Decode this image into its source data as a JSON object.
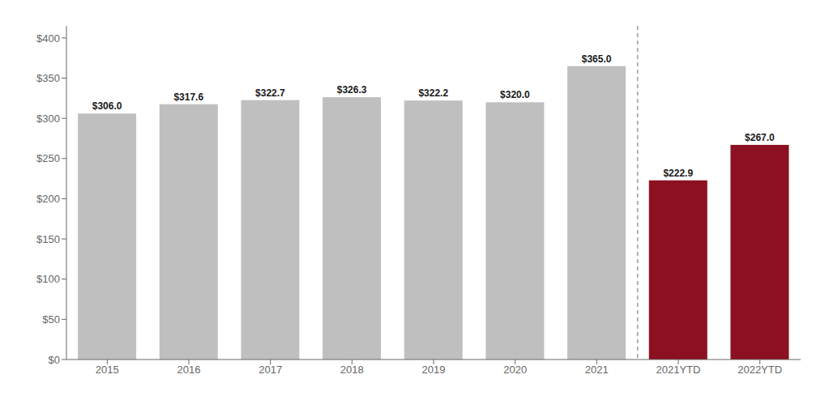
{
  "chart_data": {
    "type": "bar",
    "categories": [
      "2015",
      "2016",
      "2017",
      "2018",
      "2019",
      "2020",
      "2021",
      "2021YTD",
      "2022YTD"
    ],
    "values": [
      306.0,
      317.6,
      322.7,
      326.3,
      322.2,
      320.0,
      365.0,
      222.9,
      267.0
    ],
    "value_labels": [
      "$306.0",
      "$317.6",
      "$322.7",
      "$326.3",
      "$322.2",
      "$320.0",
      "$365.0",
      "$222.9",
      "$267.0"
    ],
    "colors": [
      "#c0bfc0",
      "#c0bfc0",
      "#c0bfc0",
      "#c0bfc0",
      "#c0bfc0",
      "#c0bfc0",
      "#c0bfc0",
      "#8b1020",
      "#8b1020"
    ],
    "data_labels": true,
    "ylim": [
      0,
      415
    ],
    "yticks": [
      {
        "value": 0,
        "label": "$0"
      },
      {
        "value": 50,
        "label": "$50"
      },
      {
        "value": 100,
        "label": "$100"
      },
      {
        "value": 150,
        "label": "$150"
      },
      {
        "value": 200,
        "label": "$200"
      },
      {
        "value": 250,
        "label": "$250"
      },
      {
        "value": 300,
        "label": "$300"
      },
      {
        "value": 350,
        "label": "$350"
      },
      {
        "value": 400,
        "label": "$400"
      }
    ],
    "grid": false
  }
}
